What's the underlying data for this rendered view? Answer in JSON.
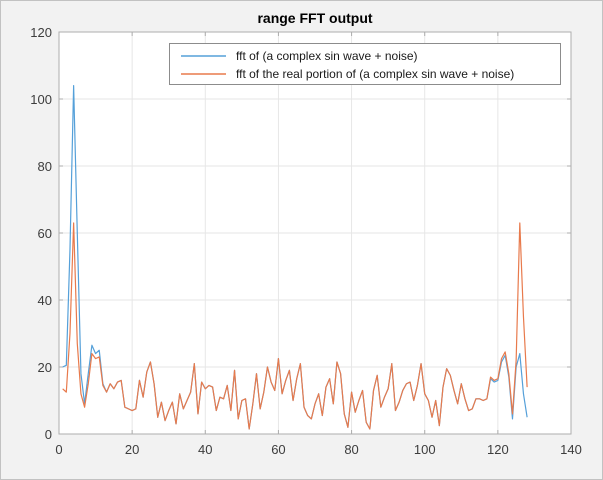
{
  "figure": {
    "title": "range FFT output"
  },
  "colors": {
    "figure_bg": "#f2f2f2",
    "plot_bg": "#ffffff",
    "grid": "#e6e6e6",
    "axis_frame": "#adadad",
    "tick_text": "#3d3d3d",
    "title_text": "#000000",
    "legend_border": "#8c8c8c",
    "series_blue": "#55a0d9",
    "series_orange": "#e87a4c"
  },
  "chart_data": {
    "type": "line",
    "title": "range FFT output",
    "xlabel": "",
    "ylabel": "",
    "xlim": [
      0,
      140
    ],
    "ylim": [
      0,
      120
    ],
    "x_ticks": [
      0,
      20,
      40,
      60,
      80,
      100,
      120,
      140
    ],
    "y_ticks": [
      0,
      20,
      40,
      60,
      80,
      100,
      120
    ],
    "grid": true,
    "legend_position": "top-center",
    "x_start": 1,
    "series": [
      {
        "name": "fft of (a complex sin wave + noise)",
        "color": "#55a0d9",
        "values": [
          20,
          20.5,
          55,
          104,
          60,
          18,
          9,
          18,
          26.5,
          24,
          25,
          15,
          12.5,
          15,
          13.5,
          15.5,
          16,
          8,
          7.5,
          7,
          7.5,
          16,
          11,
          18.5,
          21.5,
          15,
          5,
          9.5,
          4,
          7,
          9.5,
          3,
          12,
          7.5,
          10,
          12.5,
          21,
          6,
          15.5,
          13.5,
          14.5,
          14,
          7,
          11,
          10.5,
          14.5,
          7,
          19,
          4.5,
          10,
          10.5,
          1.5,
          9,
          18,
          7.5,
          12.5,
          20,
          15.5,
          13,
          22.5,
          12,
          16,
          19,
          10,
          16.5,
          21,
          8,
          5.5,
          4.5,
          9,
          12,
          5.5,
          14,
          16.5,
          9,
          21.5,
          18,
          6,
          2,
          12.5,
          6.5,
          10,
          13,
          3.5,
          1.5,
          13,
          17.5,
          8,
          11,
          13.5,
          21,
          7,
          9.5,
          13,
          15,
          15.5,
          10,
          14.5,
          21,
          12,
          10,
          5,
          10,
          2.5,
          14,
          19.5,
          17.5,
          13,
          9,
          15,
          10.5,
          7,
          7.5,
          10.5,
          10.5,
          10,
          10.5,
          16.5,
          15.5,
          16,
          21.5,
          23.5,
          17,
          4.5,
          20,
          24,
          12,
          5
        ]
      },
      {
        "name": "fft of the real portion of (a complex sin wave + noise)",
        "color": "#e87a4c",
        "values": [
          13.5,
          12.5,
          30,
          63,
          27,
          12,
          8,
          15,
          24,
          22.5,
          23,
          14.5,
          12.5,
          15,
          13.5,
          15.5,
          16,
          8,
          7.5,
          7,
          7.5,
          16,
          11,
          18.5,
          21.5,
          15,
          5,
          9.5,
          4,
          7,
          9.5,
          3,
          12,
          7.5,
          10,
          12.5,
          21,
          6,
          15.5,
          13.5,
          14.5,
          14,
          7,
          11,
          10.5,
          14.5,
          7,
          19,
          4.5,
          10,
          10.5,
          1.5,
          9,
          18,
          7.5,
          12.5,
          20,
          15.5,
          13,
          22.5,
          12,
          16,
          19,
          10,
          16.5,
          21,
          8,
          5.5,
          4.5,
          9,
          12,
          5.5,
          14,
          16.5,
          9,
          21.5,
          18,
          6,
          2,
          12.5,
          6.5,
          10,
          13,
          3.5,
          1.5,
          13,
          17.5,
          8,
          11,
          13.5,
          21,
          7,
          9.5,
          13,
          15,
          15.5,
          10,
          14.5,
          21,
          12,
          10,
          5,
          10,
          2.5,
          14,
          19.5,
          17.5,
          13,
          9,
          15,
          10.5,
          7,
          7.5,
          10.5,
          10.5,
          10,
          10.5,
          17,
          16,
          16.5,
          22.5,
          24.5,
          18,
          6,
          22,
          63,
          35,
          14
        ]
      }
    ]
  }
}
